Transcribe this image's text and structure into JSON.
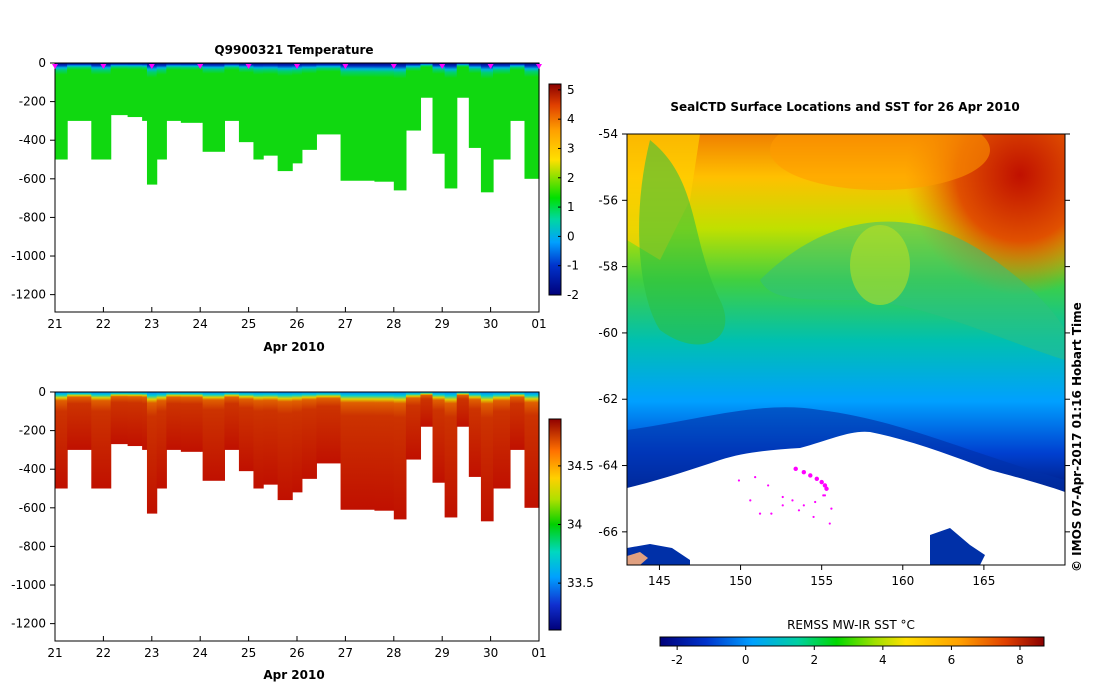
{
  "chart_data": [
    {
      "type": "heatmap",
      "title": "Q9900321  Temperature",
      "xlabel": "Apr 2010",
      "ylabel": "",
      "x_ticks": [
        "21",
        "22",
        "23",
        "24",
        "25",
        "26",
        "27",
        "28",
        "29",
        "30",
        "01"
      ],
      "y_ticks": [
        "0",
        "-200",
        "-400",
        "-600",
        "-800",
        "-1000",
        "-1200"
      ],
      "ylim": [
        -1290,
        0
      ],
      "colorbar": {
        "ticks": [
          "-2",
          "-1",
          "0",
          "1",
          "2",
          "3",
          "4",
          "5"
        ],
        "range": [
          -2,
          5.2
        ]
      },
      "profiles": [
        {
          "x": 21.0,
          "depth": 500
        },
        {
          "x": 21.25,
          "depth": 300
        },
        {
          "x": 21.75,
          "depth": 500
        },
        {
          "x": 22.15,
          "depth": 270
        },
        {
          "x": 22.5,
          "depth": 280
        },
        {
          "x": 22.8,
          "depth": 300
        },
        {
          "x": 22.9,
          "depth": 630
        },
        {
          "x": 23.1,
          "depth": 500
        },
        {
          "x": 23.3,
          "depth": 300
        },
        {
          "x": 23.6,
          "depth": 310
        },
        {
          "x": 24.0,
          "depth": 310
        },
        {
          "x": 24.05,
          "depth": 460
        },
        {
          "x": 24.5,
          "depth": 300
        },
        {
          "x": 24.8,
          "depth": 410
        },
        {
          "x": 25.1,
          "depth": 500
        },
        {
          "x": 25.3,
          "depth": 480
        },
        {
          "x": 25.6,
          "depth": 560
        },
        {
          "x": 25.9,
          "depth": 520
        },
        {
          "x": 26.1,
          "depth": 450
        },
        {
          "x": 26.4,
          "depth": 370
        },
        {
          "x": 26.9,
          "depth": 610
        },
        {
          "x": 27.6,
          "depth": 615
        },
        {
          "x": 28.0,
          "depth": 660
        },
        {
          "x": 28.25,
          "depth": 350
        },
        {
          "x": 28.55,
          "depth": 180
        },
        {
          "x": 28.8,
          "depth": 470
        },
        {
          "x": 29.05,
          "depth": 650
        },
        {
          "x": 29.3,
          "depth": 180
        },
        {
          "x": 29.55,
          "depth": 440
        },
        {
          "x": 29.8,
          "depth": 670
        },
        {
          "x": 30.05,
          "depth": 500
        },
        {
          "x": 30.4,
          "depth": 300
        },
        {
          "x": 30.7,
          "depth": 600
        }
      ],
      "surface_markers": [
        21.0,
        22.0,
        23.0,
        24.0,
        25.0,
        26.0,
        27.0,
        28.0,
        29.0,
        30.0,
        31.0
      ]
    },
    {
      "type": "heatmap",
      "title": "",
      "xlabel": "Apr 2010",
      "ylabel": "",
      "x_ticks": [
        "21",
        "22",
        "23",
        "24",
        "25",
        "26",
        "27",
        "28",
        "29",
        "30",
        "01"
      ],
      "y_ticks": [
        "0",
        "-200",
        "-400",
        "-600",
        "-800",
        "-1000",
        "-1200"
      ],
      "ylim": [
        -1290,
        0
      ],
      "colorbar": {
        "ticks": [
          "33.5",
          "34",
          "34.5"
        ],
        "range": [
          33.1,
          34.9
        ]
      }
    },
    {
      "type": "heatmap",
      "title": "SealCTD Surface Locations and SST for 26 Apr 2010",
      "xlabel": "",
      "ylabel": "",
      "x_ticks": [
        "145",
        "150",
        "155",
        "160",
        "165"
      ],
      "y_ticks": [
        "-54",
        "-56",
        "-58",
        "-60",
        "-62",
        "-64",
        "-66"
      ],
      "xlim": [
        143,
        170
      ],
      "ylim": [
        -67,
        -54
      ],
      "colorbar": {
        "label": "REMSS MW-IR SST °C",
        "ticks": [
          "-2",
          "0",
          "2",
          "4",
          "6",
          "8"
        ],
        "range": [
          -2.5,
          8.7
        ]
      },
      "side_label": "© IMOS 07-Apr-2017 01:16 Hobart Time",
      "seal_track": [
        [
          153.4,
          -64.1
        ],
        [
          153.9,
          -64.2
        ],
        [
          154.3,
          -64.3
        ],
        [
          154.7,
          -64.4
        ],
        [
          155.0,
          -64.5
        ],
        [
          155.2,
          -64.6
        ],
        [
          155.3,
          -64.7
        ],
        [
          155.1,
          -64.9
        ],
        [
          154.6,
          -65.1
        ],
        [
          153.9,
          -65.2
        ],
        [
          153.2,
          -65.05
        ],
        [
          152.6,
          -64.95
        ],
        [
          151.7,
          -64.6
        ],
        [
          150.9,
          -64.35
        ],
        [
          149.9,
          -64.45
        ],
        [
          150.6,
          -65.05
        ],
        [
          151.2,
          -65.45
        ],
        [
          151.9,
          -65.45
        ],
        [
          152.6,
          -65.2
        ],
        [
          153.6,
          -65.35
        ],
        [
          154.5,
          -65.55
        ],
        [
          155.5,
          -65.75
        ],
        [
          155.6,
          -65.3
        ],
        [
          155.2,
          -64.9
        ]
      ]
    }
  ]
}
